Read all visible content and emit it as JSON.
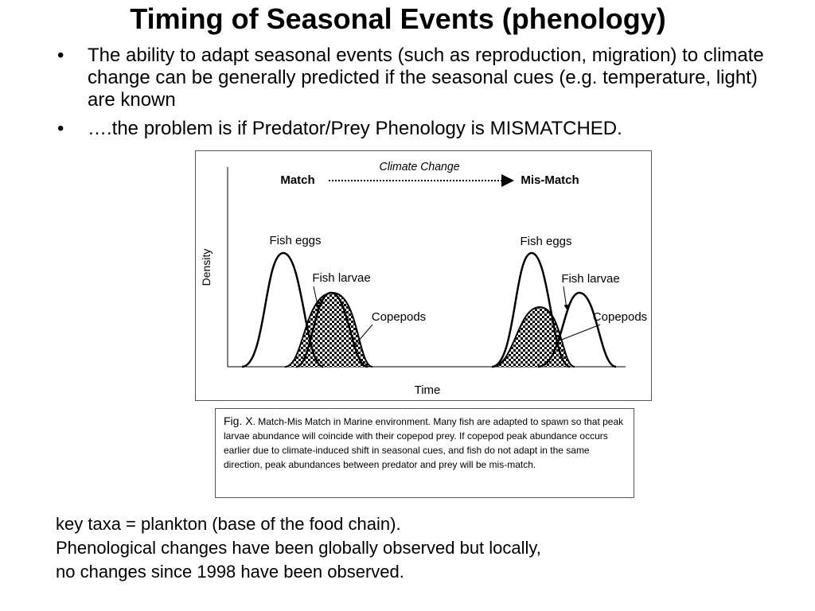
{
  "title": "Timing of Seasonal Events (phenology)",
  "bullets": [
    {
      "marker": "•",
      "text": "The ability to adapt seasonal events (such as reproduction, migration) to climate change can be generally predicted if the seasonal cues (e.g. temperature, light) are known"
    },
    {
      "marker": "•",
      "text": "….the problem is if Predator/Prey Phenology is MISMATCHED."
    }
  ],
  "figure": {
    "climate_change": "Climate Change",
    "match": "Match",
    "mismatch": "Mis-Match",
    "y_axis": "Density",
    "x_axis": "Time",
    "left": {
      "eggs": "Fish eggs",
      "larvae": "Fish larvae",
      "copepods": "Copepods"
    },
    "right": {
      "eggs": "Fish eggs",
      "larvae": "Fish larvae",
      "copepods": "Copepods"
    }
  },
  "caption": {
    "lead": "Fig. X",
    "text": ". Match-Mis Match in Marine environment.  Many fish are adapted to spawn so that peak larvae abundance will coincide with their copepod prey. If copepod peak abundance occurs earlier due to climate-induced shift in seasonal cues, and fish do not adapt in the same direction, peak abundances between predator and prey will be mis-match."
  },
  "bottom_lines": [
    "key taxa = plankton (base of the food chain).",
    "Phenological changes have been globally observed but locally,",
    "no changes since 1998 have been observed."
  ]
}
